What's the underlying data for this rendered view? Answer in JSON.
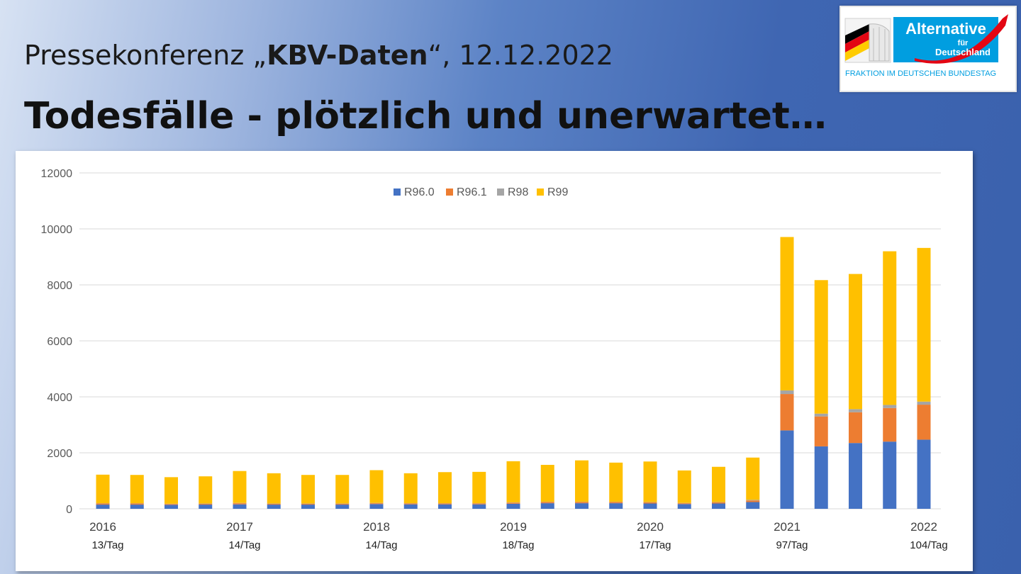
{
  "slide": {
    "title_prefix": "Pressekonferenz „",
    "title_bold": "KBV-Daten",
    "title_suffix": "“, 12.12.2022",
    "headline": "Todesfälle - plötzlich und unerwartet…"
  },
  "logo": {
    "name_line1": "Alternative",
    "name_line2": "für",
    "name_line3": "Deutschland",
    "subtitle": "FRAKTION IM DEUTSCHEN BUNDESTAG",
    "colors": {
      "blue": "#009ee0",
      "red": "#e30613",
      "black": "#000000",
      "gold": "#ffcc00"
    }
  },
  "chart_data": {
    "type": "bar",
    "stacked": true,
    "ylim": [
      0,
      12000
    ],
    "yticks": [
      0,
      2000,
      4000,
      6000,
      8000,
      10000,
      12000
    ],
    "grid": true,
    "legend_position": "top-center",
    "year_labels": [
      {
        "label": "2016",
        "index": 0,
        "rate": "13/Tag"
      },
      {
        "label": "2017",
        "index": 4,
        "rate": "14/Tag"
      },
      {
        "label": "2018",
        "index": 8,
        "rate": "14/Tag"
      },
      {
        "label": "2019",
        "index": 12,
        "rate": "18/Tag"
      },
      {
        "label": "2020",
        "index": 16,
        "rate": "17/Tag"
      },
      {
        "label": "2021",
        "index": 20,
        "rate": "97/Tag"
      },
      {
        "label": "2022",
        "index": 24,
        "rate": "104/Tag"
      }
    ],
    "series": [
      {
        "name": "R96.0",
        "color": "#4472c4",
        "values": [
          150,
          150,
          140,
          150,
          160,
          150,
          150,
          150,
          170,
          160,
          160,
          160,
          180,
          200,
          200,
          200,
          190,
          170,
          190,
          240,
          2800,
          2230,
          2350,
          2400,
          2470
        ]
      },
      {
        "name": "R96.1",
        "color": "#ed7d31",
        "values": [
          40,
          40,
          30,
          30,
          40,
          30,
          30,
          30,
          30,
          30,
          30,
          30,
          40,
          40,
          40,
          40,
          40,
          30,
          40,
          60,
          1300,
          1070,
          1100,
          1200,
          1250
        ]
      },
      {
        "name": "R98",
        "color": "#a5a5a5",
        "values": [
          10,
          10,
          10,
          10,
          10,
          10,
          10,
          10,
          10,
          10,
          10,
          10,
          10,
          10,
          10,
          10,
          10,
          10,
          10,
          20,
          130,
          100,
          110,
          110,
          110
        ]
      },
      {
        "name": "R99",
        "color": "#ffc000",
        "values": [
          1020,
          1010,
          950,
          970,
          1140,
          1080,
          1020,
          1020,
          1170,
          1070,
          1110,
          1120,
          1470,
          1320,
          1480,
          1400,
          1450,
          1160,
          1260,
          1510,
          5480,
          4770,
          4830,
          5490,
          5490
        ]
      }
    ]
  }
}
